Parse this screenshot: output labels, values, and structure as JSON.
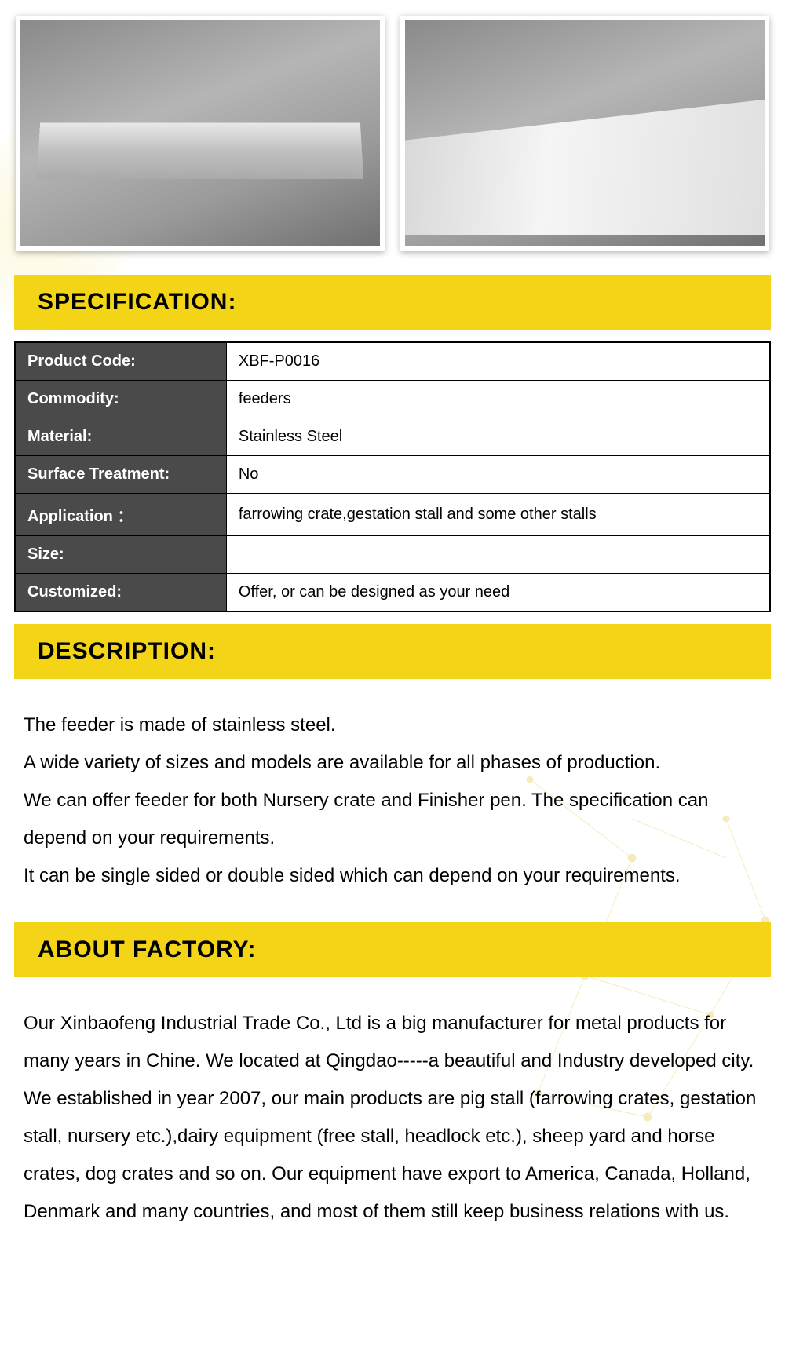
{
  "sections": {
    "specification": {
      "title": "SPECIFICATION:",
      "rows": [
        {
          "label": "Product Code:",
          "value": "XBF-P0016"
        },
        {
          "label": "Commodity:",
          "value": "feeders"
        },
        {
          "label": "Material:",
          "value": "Stainless Steel"
        },
        {
          "label": "Surface Treatment:",
          "value": "No"
        },
        {
          "label": "Application ：",
          "value": "farrowing crate,gestation stall and some other stalls"
        },
        {
          "label": "Size:",
          "value": ""
        },
        {
          "label": "Customized:",
          "value": "Offer, or can be designed as your need"
        }
      ]
    },
    "description": {
      "title": "DESCRIPTION:",
      "body": "The feeder is made of stainless steel.\nA wide variety of sizes and models are available for all phases of production.\nWe can offer feeder for both Nursery crate and Finisher pen. The specification can depend on your requirements.\nIt can be single sided or double sided which can depend on your requirements."
    },
    "about_factory": {
      "title": "ABOUT FACTORY:",
      "body": "Our Xinbaofeng Industrial Trade Co., Ltd is a big manufacturer for metal products for many years in Chine. We located at Qingdao-----a beautiful and Industry developed city.\nWe established in year 2007, our main products are pig stall (farrowing crates, gestation stall, nursery etc.),dairy equipment (free stall, headlock etc.), sheep yard and horse crates, dog crates and so on. Our equipment have export to America, Canada, Holland, Denmark and many countries, and most of them still keep business relations with us."
    }
  },
  "styling": {
    "header_bg": "#f4d417",
    "header_text": "#000000",
    "table_label_bg": "#4a4a4a",
    "table_label_text": "#ffffff",
    "table_value_bg": "#ffffff",
    "table_border": "#000000",
    "body_text_color": "#000000",
    "body_font_size": 24,
    "header_font_size": 30,
    "table_font_size": 20
  },
  "images": {
    "count": 2,
    "descriptions": [
      "stainless steel trough feeder on concrete floor",
      "long stainless steel feeder installation outdoor site with worker"
    ]
  }
}
